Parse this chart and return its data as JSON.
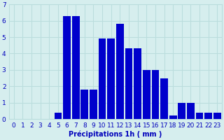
{
  "hours": [
    0,
    1,
    2,
    3,
    4,
    5,
    6,
    7,
    8,
    9,
    10,
    11,
    12,
    13,
    14,
    15,
    16,
    17,
    18,
    19,
    20,
    21,
    22,
    23
  ],
  "values": [
    0,
    0,
    0,
    0,
    0,
    0.4,
    6.3,
    6.3,
    1.8,
    1.8,
    4.9,
    4.9,
    5.8,
    4.3,
    4.3,
    3.0,
    3.0,
    2.5,
    0.2,
    1.0,
    1.0,
    0.4,
    0.4,
    0.4
  ],
  "bar_color": "#0000cc",
  "background_color": "#d6eeee",
  "grid_color": "#bbdddd",
  "xlabel": "Précipitations 1h ( mm )",
  "xlabel_color": "#0000bb",
  "tick_color": "#0000bb",
  "ylim": [
    0,
    7
  ],
  "yticks": [
    0,
    1,
    2,
    3,
    4,
    5,
    6,
    7
  ],
  "tick_fontsize": 6.5,
  "xlabel_fontsize": 7.0
}
